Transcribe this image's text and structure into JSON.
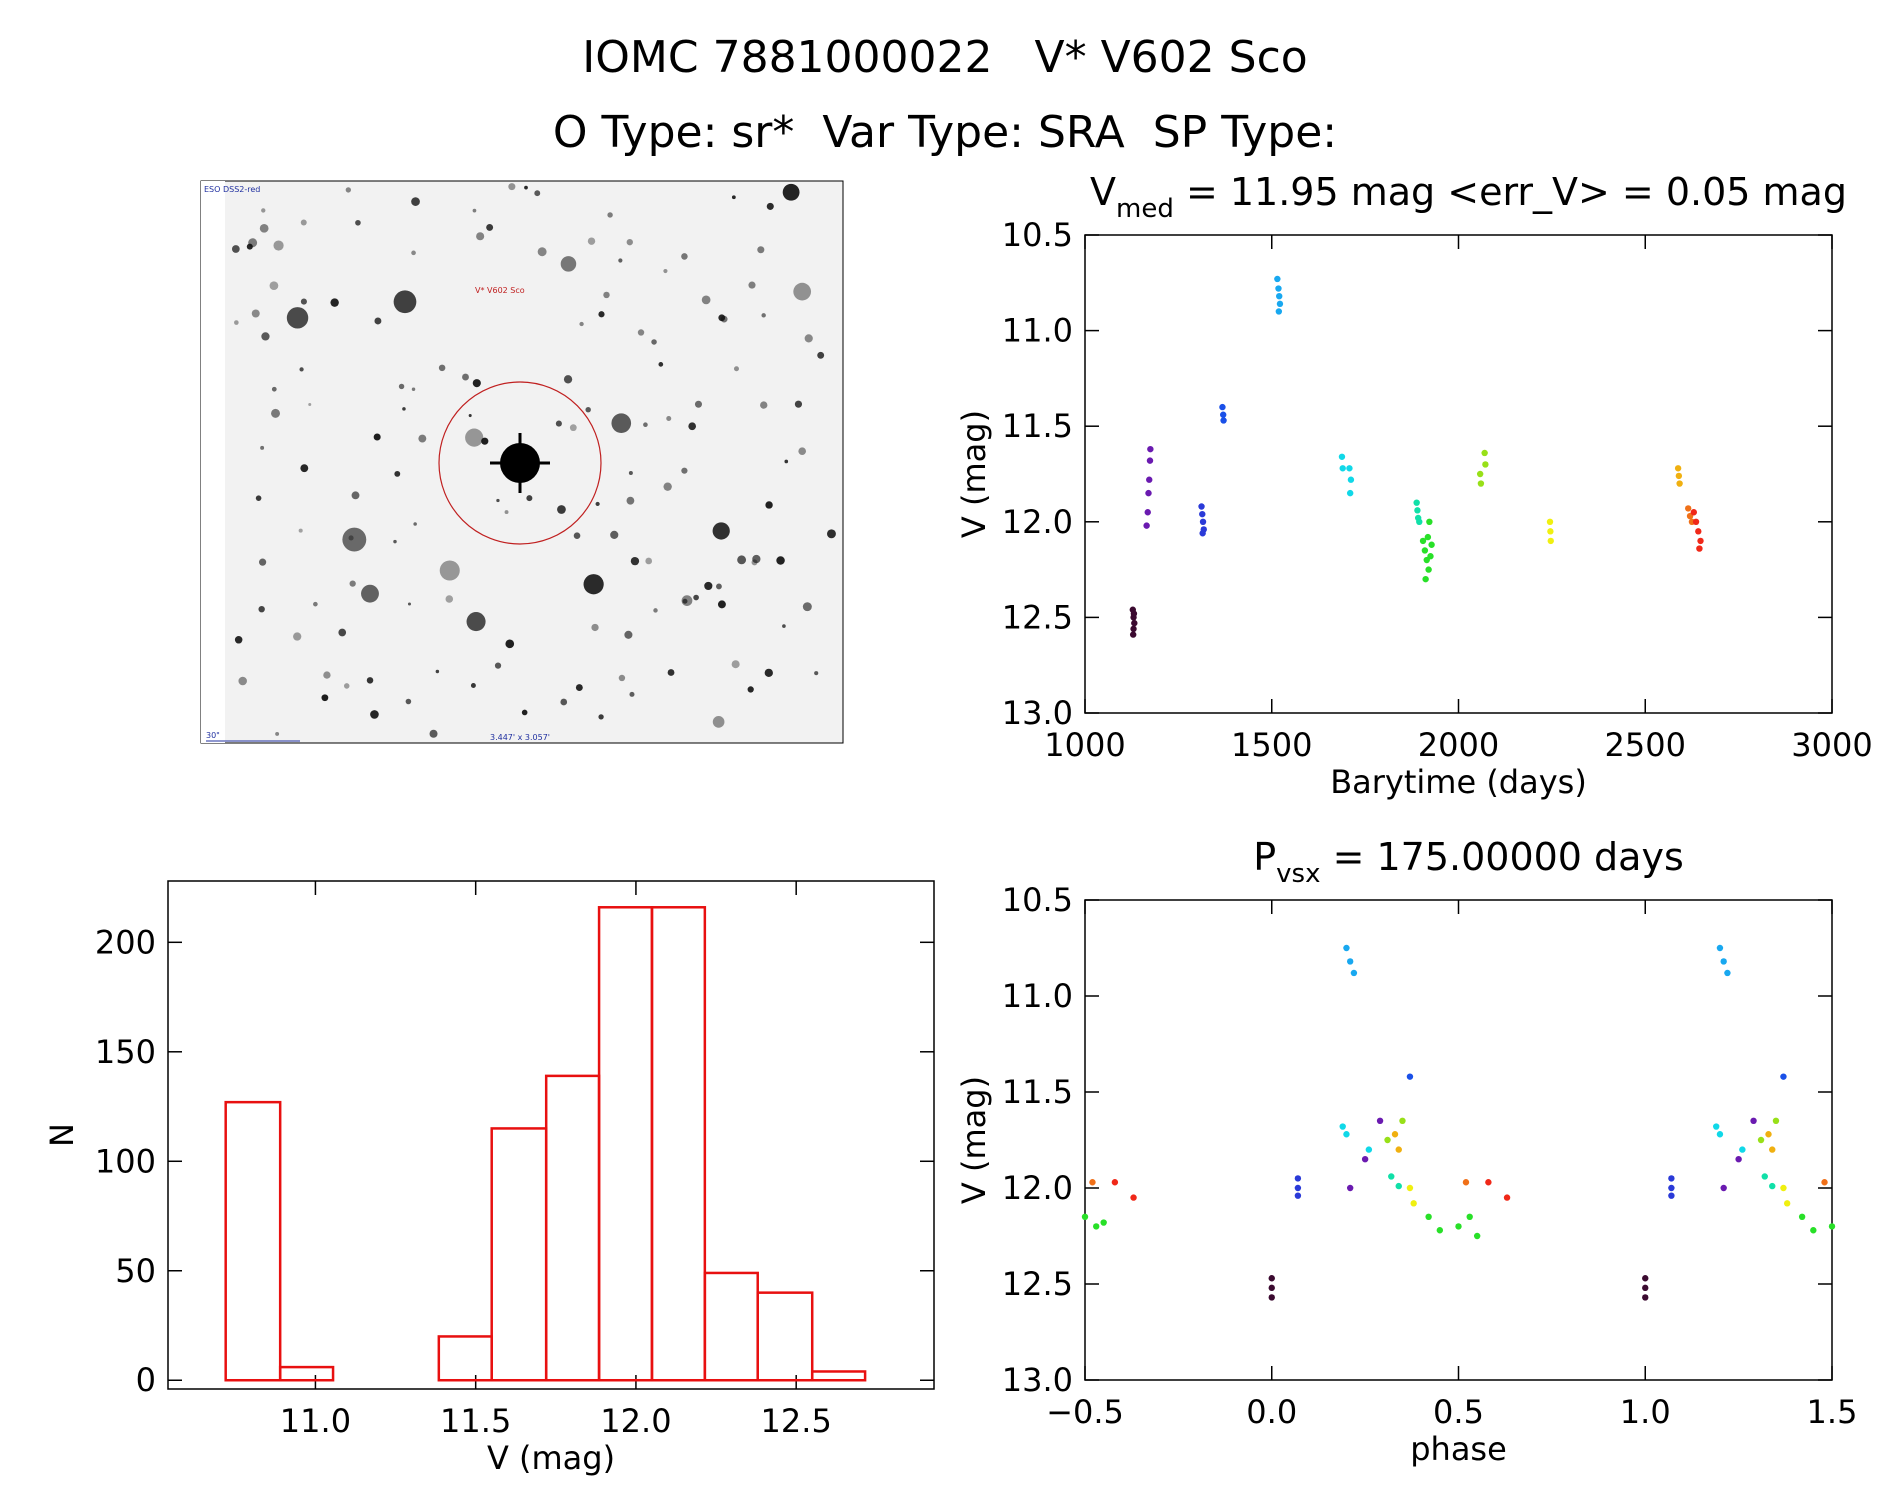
{
  "header": {
    "line1": "IOMC 7881000022   V* V602 Sco",
    "line2": "O Type: sr*  Var Type: SRA  SP Type:"
  },
  "finder_image": {
    "survey": "ESO DSS2-red",
    "target": "V* V602 Sco",
    "scale": "30\"",
    "size": "3.447' x 3.057'"
  },
  "chart_data": [
    {
      "type": "scatter",
      "title": {
        "main": "V",
        "sub": "med",
        "rest": " = 11.95 mag <err_V> = 0.05 mag"
      },
      "x_label": "Barytime (days)",
      "y_label": "V (mag)",
      "y_inverted": true,
      "xlim": [
        1000,
        3000
      ],
      "xticks": [
        1000,
        1500,
        2000,
        2500,
        3000
      ],
      "ylim": [
        10.5,
        13.0
      ],
      "yticks": [
        10.5,
        {
          "value": 11,
          "label": "11.0"
        },
        11.5,
        {
          "value": 12,
          "label": "12.0"
        },
        12.5,
        {
          "value": 13,
          "label": "13.0"
        }
      ],
      "series": [
        {
          "color": "#3b0a30",
          "x": [
            1128,
            1130,
            1132,
            1130,
            1129,
            1131
          ],
          "values": [
            12.46,
            12.5,
            12.53,
            12.56,
            12.59,
            12.48
          ]
        },
        {
          "color": "#6a1ab0",
          "x": [
            1165,
            1168,
            1170,
            1172,
            1174,
            1175
          ],
          "values": [
            12.02,
            11.95,
            11.85,
            11.78,
            11.68,
            11.62
          ]
        },
        {
          "color": "#2a3ad8",
          "x": [
            1312,
            1314,
            1316,
            1318,
            1315
          ],
          "values": [
            11.92,
            11.96,
            12.0,
            12.04,
            12.06
          ]
        },
        {
          "color": "#1a50e8",
          "x": [
            1368,
            1370,
            1371
          ],
          "values": [
            11.4,
            11.44,
            11.47
          ]
        },
        {
          "color": "#18a8f0",
          "x": [
            1515,
            1518,
            1520,
            1522,
            1519
          ],
          "values": [
            10.73,
            10.78,
            10.82,
            10.86,
            10.9
          ]
        },
        {
          "color": "#10d8e8",
          "x": [
            1688,
            1690,
            1708,
            1712,
            1710
          ],
          "values": [
            11.66,
            11.72,
            11.72,
            11.78,
            11.85
          ]
        },
        {
          "color": "#10e0a8",
          "x": [
            1888,
            1890,
            1892,
            1895
          ],
          "values": [
            11.9,
            11.94,
            11.98,
            12.0
          ]
        },
        {
          "color": "#28e028",
          "x": [
            1905,
            1910,
            1915,
            1920,
            1925,
            1912,
            1918,
            1922,
            1928
          ],
          "values": [
            12.1,
            12.15,
            12.2,
            12.25,
            12.18,
            12.3,
            12.08,
            12.0,
            12.12
          ]
        },
        {
          "color": "#98e018",
          "x": [
            2058,
            2060,
            2070,
            2072
          ],
          "values": [
            11.75,
            11.8,
            11.64,
            11.7
          ]
        },
        {
          "color": "#f0f010",
          "x": [
            2245,
            2246,
            2247
          ],
          "values": [
            12.0,
            12.05,
            12.1
          ]
        },
        {
          "color": "#f0b010",
          "x": [
            2588,
            2590,
            2592
          ],
          "values": [
            11.72,
            11.76,
            11.8
          ]
        },
        {
          "color": "#f07018",
          "x": [
            2615,
            2620,
            2625
          ],
          "values": [
            11.93,
            11.97,
            12.0
          ]
        },
        {
          "color": "#f02818",
          "x": [
            2630,
            2636,
            2642,
            2648,
            2645
          ],
          "values": [
            11.95,
            12.0,
            12.05,
            12.1,
            12.14
          ]
        }
      ]
    },
    {
      "type": "histogram",
      "x_label": "V (mag)",
      "y_label": "N",
      "color": "#e81010",
      "bins": [
        10.72,
        10.89,
        11.055,
        11.22,
        11.385,
        11.55,
        11.72,
        11.885,
        12.05,
        12.215,
        12.38,
        12.55,
        12.715
      ],
      "values": [
        127,
        6,
        0,
        0,
        20,
        115,
        139,
        216,
        216,
        49,
        40,
        4
      ],
      "xlim": [
        10.54,
        12.93
      ],
      "xticks": [
        {
          "value": 11,
          "label": "11.0"
        },
        11.5,
        {
          "value": 12,
          "label": "12.0"
        },
        12.5
      ],
      "ylim": [
        -4,
        228
      ],
      "yticks": [
        0,
        50,
        100,
        150,
        200
      ]
    },
    {
      "type": "scatter",
      "title": {
        "main": "P",
        "sub": "vsx",
        "rest": " = 175.00000 days"
      },
      "x_label": "phase",
      "y_label": "V (mag)",
      "y_inverted": true,
      "xlim": [
        -0.5,
        1.5
      ],
      "xticks": [
        {
          "value": -0.5,
          "label": "−0.5"
        },
        {
          "value": 0,
          "label": "0.0"
        },
        0.5,
        {
          "value": 1,
          "label": "1.0"
        },
        1.5
      ],
      "ylim": [
        10.5,
        13.0
      ],
      "yticks": [
        10.5,
        {
          "value": 11,
          "label": "11.0"
        },
        11.5,
        {
          "value": 12,
          "label": "12.0"
        },
        12.5,
        {
          "value": 13,
          "label": "13.0"
        }
      ],
      "series": [
        {
          "color": "#3b0a30",
          "x": [
            0.0,
            0.0,
            0.0,
            1.0,
            1.0,
            1.0
          ],
          "values": [
            12.47,
            12.52,
            12.57,
            12.47,
            12.52,
            12.57
          ]
        },
        {
          "color": "#6a1ab0",
          "x": [
            0.21,
            0.25,
            0.29,
            1.21,
            1.25,
            1.29
          ],
          "values": [
            12.0,
            11.85,
            11.65,
            12.0,
            11.85,
            11.65
          ]
        },
        {
          "color": "#2a3ad8",
          "x": [
            0.07,
            0.07,
            0.07,
            1.07,
            1.07,
            1.07
          ],
          "values": [
            11.95,
            12.0,
            12.04,
            11.95,
            12.0,
            12.04
          ]
        },
        {
          "color": "#1a50e8",
          "x": [
            0.37,
            1.37
          ],
          "values": [
            11.42,
            11.42
          ]
        },
        {
          "color": "#18a8f0",
          "x": [
            0.2,
            0.21,
            0.22,
            1.2,
            1.21,
            1.22
          ],
          "values": [
            10.75,
            10.82,
            10.88,
            10.75,
            10.82,
            10.88
          ]
        },
        {
          "color": "#10d8e8",
          "x": [
            0.19,
            0.2,
            0.26,
            1.19,
            1.2,
            1.26
          ],
          "values": [
            11.68,
            11.72,
            11.8,
            11.68,
            11.72,
            11.8
          ]
        },
        {
          "color": "#10e0a8",
          "x": [
            0.32,
            0.34,
            1.32,
            1.34
          ],
          "values": [
            11.94,
            11.99,
            11.94,
            11.99
          ]
        },
        {
          "color": "#28e028",
          "x": [
            -0.5,
            -0.47,
            -0.45,
            0.42,
            0.45,
            0.5,
            0.53,
            0.55,
            1.42,
            1.45,
            1.5
          ],
          "values": [
            12.15,
            12.2,
            12.18,
            12.15,
            12.22,
            12.2,
            12.15,
            12.25,
            12.15,
            12.22,
            12.2
          ]
        },
        {
          "color": "#98e018",
          "x": [
            0.31,
            0.35,
            1.31,
            1.35
          ],
          "values": [
            11.75,
            11.65,
            11.75,
            11.65
          ]
        },
        {
          "color": "#f0f010",
          "x": [
            0.37,
            0.38,
            1.37,
            1.38
          ],
          "values": [
            12.0,
            12.08,
            12.0,
            12.08
          ]
        },
        {
          "color": "#f0b010",
          "x": [
            0.33,
            0.34,
            1.33,
            1.34
          ],
          "values": [
            11.72,
            11.8,
            11.72,
            11.8
          ]
        },
        {
          "color": "#f07018",
          "x": [
            -0.48,
            0.52,
            1.48
          ],
          "values": [
            11.97,
            11.97,
            11.97
          ]
        },
        {
          "color": "#f02818",
          "x": [
            -0.42,
            -0.37,
            0.58,
            0.63
          ],
          "values": [
            11.97,
            12.05,
            11.97,
            12.05
          ]
        }
      ]
    }
  ]
}
